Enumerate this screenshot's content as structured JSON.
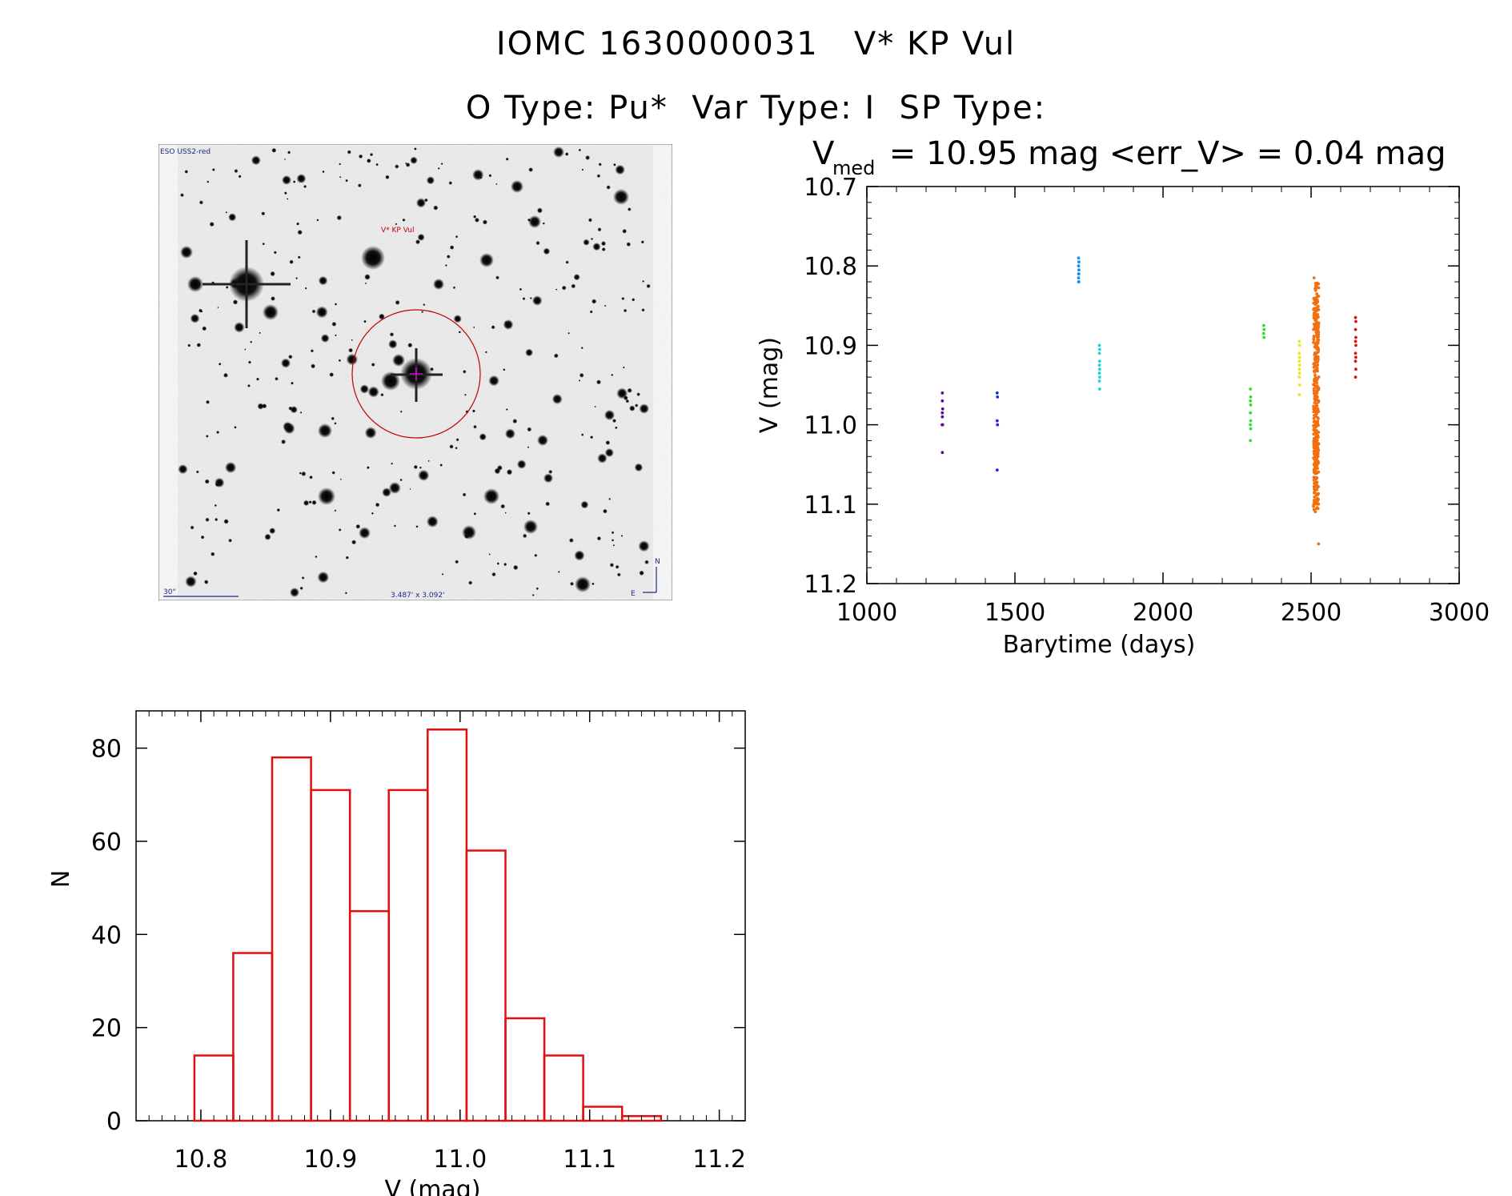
{
  "header": {
    "line1": "IOMC 1630000031   V* KP Vul",
    "line2": "O Type: Pu*  Var Type: I  SP Type:"
  },
  "sky_image": {
    "survey_label": "ESO USS2-red",
    "target_label": "V* KP Vul",
    "scale_label": "30\"",
    "fov_label": "3.487' x 3.092'",
    "north_label": "N",
    "east_label": "E",
    "circle_color": "#c00000",
    "target_color": "#ff00ff"
  },
  "chart_data": [
    {
      "type": "scatter",
      "title_prefix": "V",
      "title_sub": "med",
      "title_suffix": " = 10.95 mag <err_V> = 0.04 mag",
      "xlabel": "Barytime (days)",
      "ylabel": "V (mag)",
      "xlim": [
        1000,
        3000
      ],
      "ylim": [
        11.2,
        10.7
      ],
      "xticks": [
        "1000",
        "1500",
        "2000",
        "2500",
        "3000"
      ],
      "yticks": [
        "10.7",
        "10.8",
        "10.9",
        "11.0",
        "11.1",
        "11.2"
      ],
      "series": [
        {
          "name": "s1",
          "color": "#5a0a9c",
          "x": [
            1255,
            1255,
            1256,
            1255,
            1254,
            1256,
            1255,
            1255
          ],
          "y": [
            10.96,
            10.97,
            10.98,
            10.99,
            11.0,
            11.0,
            10.985,
            11.035
          ]
        },
        {
          "name": "s2",
          "color": "#1a2ad8",
          "x": [
            1440,
            1441,
            1440,
            1441,
            1440
          ],
          "y": [
            10.96,
            10.965,
            10.995,
            11.0,
            11.057
          ]
        },
        {
          "name": "s3",
          "color": "#1a8ee8",
          "x": [
            1715,
            1716,
            1715,
            1716,
            1715,
            1716,
            1715,
            1716,
            1715
          ],
          "y": [
            10.79,
            10.795,
            10.8,
            10.805,
            10.81,
            10.81,
            10.815,
            10.82,
            10.82
          ]
        },
        {
          "name": "s4",
          "color": "#20d4d4",
          "x": [
            1785,
            1786,
            1785,
            1786,
            1785,
            1786,
            1785,
            1786,
            1785,
            1786
          ],
          "y": [
            10.9,
            10.905,
            10.91,
            10.92,
            10.925,
            10.93,
            10.935,
            10.94,
            10.945,
            10.955
          ]
        },
        {
          "name": "s5",
          "color": "#30e030",
          "x": [
            2295,
            2296,
            2295,
            2296,
            2295,
            2296,
            2295,
            2296,
            2295,
            2340,
            2341,
            2340,
            2341
          ],
          "y": [
            10.955,
            10.965,
            10.97,
            10.975,
            10.985,
            10.995,
            11.0,
            11.005,
            11.02,
            10.875,
            10.88,
            10.885,
            10.89
          ]
        },
        {
          "name": "s6",
          "color": "#e8e820",
          "x": [
            2460,
            2461,
            2460,
            2461,
            2460,
            2461,
            2460,
            2461,
            2460,
            2461,
            2460
          ],
          "y": [
            10.895,
            10.9,
            10.91,
            10.915,
            10.92,
            10.925,
            10.93,
            10.935,
            10.94,
            10.95,
            10.962
          ]
        },
        {
          "name": "s7",
          "color": "#f07010",
          "x": [
            2510,
            2515,
            2520,
            2525
          ],
          "y": [
            10.815,
            10.88,
            10.96,
            11.1
          ]
        },
        {
          "name": "s8",
          "color": "#d81818",
          "x": [
            2650,
            2651,
            2650,
            2651,
            2650,
            2651,
            2650,
            2651,
            2650,
            2651,
            2650
          ],
          "y": [
            10.865,
            10.87,
            10.88,
            10.89,
            10.895,
            10.9,
            10.91,
            10.915,
            10.92,
            10.93,
            10.94
          ]
        }
      ]
    },
    {
      "type": "bar",
      "xlabel": "V (mag)",
      "ylabel": "N",
      "xlim": [
        10.75,
        11.22
      ],
      "ylim": [
        0,
        88
      ],
      "xticks": [
        "10.8",
        "10.9",
        "11.0",
        "11.1",
        "11.2"
      ],
      "yticks": [
        "0",
        "20",
        "40",
        "60",
        "80"
      ],
      "bin_edges": [
        10.795,
        10.825,
        10.855,
        10.885,
        10.915,
        10.945,
        10.975,
        11.005,
        11.035,
        11.065,
        11.095,
        11.125,
        11.155
      ],
      "values": [
        14,
        36,
        78,
        71,
        45,
        71,
        84,
        58,
        22,
        14,
        3,
        1
      ],
      "color": "#e01010"
    }
  ]
}
